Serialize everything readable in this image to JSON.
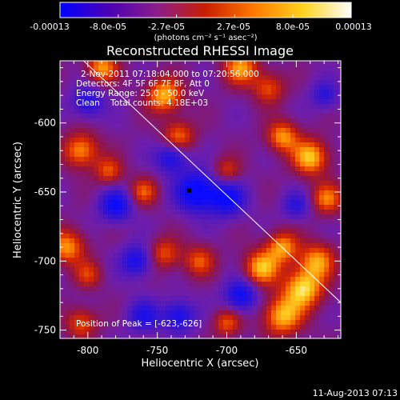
{
  "colorbar": {
    "tick_labels": [
      "-0.00013",
      "-8.0e-05",
      "-2.7e-05",
      "2.7e-05",
      "8.0e-05",
      "0.00013"
    ],
    "units": "(photons cm⁻² s⁻¹ asec⁻²)",
    "range": [
      -0.00013,
      0.00013
    ],
    "colors": [
      "#0000ff",
      "#4b00b4",
      "#8a1e8a",
      "#c81e00",
      "#ff7a00",
      "#ffd21e",
      "#ffffff"
    ]
  },
  "annotations": {
    "time_range": "2-Nov-2011 07:18:04.000 to 07:20:56.000",
    "detectors": "Detectors: 4F 5F 6F 7F 8F, Att 0",
    "energy": "Energy Range: 25.0 - 50.0 keV",
    "clean": "Clean    Total counts: 4.18E+03",
    "peak": "Position of Peak = [-623,-626]"
  },
  "footer": {
    "timestamp": "11-Aug-2013 07:13"
  },
  "chart_data": {
    "type": "heatmap",
    "title": "Reconstructed RHESSI Image",
    "xlabel": "Heliocentric X (arcsec)",
    "ylabel": "Heliocentric Y (arcsec)",
    "xlim": [
      -820,
      -618
    ],
    "ylim": [
      -756,
      -555
    ],
    "x_ticks": [
      -800,
      -750,
      -700,
      -650
    ],
    "y_ticks": [
      -750,
      -700,
      -650,
      -600
    ],
    "peak_position": [
      -623,
      -626
    ],
    "minimum_marker": [
      -727,
      -649
    ],
    "limb_line": [
      [
        -803,
        -555
      ],
      [
        -618,
        -730
      ]
    ],
    "blobs": [
      {
        "x": -645,
        "y": -720,
        "v": 1.0,
        "s": 10
      },
      {
        "x": -660,
        "y": -740,
        "v": 0.9,
        "s": 10
      },
      {
        "x": -675,
        "y": -705,
        "v": 0.9,
        "s": 9
      },
      {
        "x": -660,
        "y": -690,
        "v": 0.8,
        "s": 8
      },
      {
        "x": -635,
        "y": -700,
        "v": 0.8,
        "s": 9
      },
      {
        "x": -640,
        "y": -625,
        "v": 0.95,
        "s": 9
      },
      {
        "x": -660,
        "y": -610,
        "v": 0.8,
        "s": 8
      },
      {
        "x": -628,
        "y": -655,
        "v": 0.7,
        "s": 8
      },
      {
        "x": -690,
        "y": -560,
        "v": 0.8,
        "s": 9
      },
      {
        "x": -670,
        "y": -575,
        "v": 0.6,
        "s": 8
      },
      {
        "x": -745,
        "y": -580,
        "v": 0.9,
        "s": 9
      },
      {
        "x": -790,
        "y": -560,
        "v": 0.8,
        "s": 8
      },
      {
        "x": -805,
        "y": -620,
        "v": 0.8,
        "s": 9
      },
      {
        "x": -785,
        "y": -635,
        "v": 0.6,
        "s": 7
      },
      {
        "x": -735,
        "y": -610,
        "v": 0.7,
        "s": 8
      },
      {
        "x": -760,
        "y": -650,
        "v": 0.6,
        "s": 7
      },
      {
        "x": -700,
        "y": -635,
        "v": 0.5,
        "s": 7
      },
      {
        "x": -815,
        "y": -690,
        "v": 0.8,
        "s": 9
      },
      {
        "x": -800,
        "y": -710,
        "v": 0.5,
        "s": 7
      },
      {
        "x": -745,
        "y": -695,
        "v": 0.6,
        "s": 8
      },
      {
        "x": -720,
        "y": -700,
        "v": 0.6,
        "s": 8
      },
      {
        "x": -805,
        "y": -745,
        "v": 0.6,
        "s": 8
      },
      {
        "x": -700,
        "y": -745,
        "v": 0.6,
        "s": 7
      },
      {
        "x": -722,
        "y": -650,
        "v": -1.0,
        "s": 10
      },
      {
        "x": -700,
        "y": -655,
        "v": -0.8,
        "s": 9
      },
      {
        "x": -780,
        "y": -660,
        "v": -0.8,
        "s": 8
      },
      {
        "x": -740,
        "y": -625,
        "v": -0.7,
        "s": 8
      },
      {
        "x": -765,
        "y": -700,
        "v": -0.7,
        "s": 8
      },
      {
        "x": -735,
        "y": -740,
        "v": -0.7,
        "s": 8
      },
      {
        "x": -690,
        "y": -725,
        "v": -0.8,
        "s": 8
      },
      {
        "x": -800,
        "y": -585,
        "v": -0.6,
        "s": 8
      },
      {
        "x": -650,
        "y": -660,
        "v": -0.5,
        "s": 7
      },
      {
        "x": -760,
        "y": -740,
        "v": -0.6,
        "s": 8
      },
      {
        "x": -630,
        "y": -580,
        "v": -0.5,
        "s": 7
      }
    ]
  }
}
